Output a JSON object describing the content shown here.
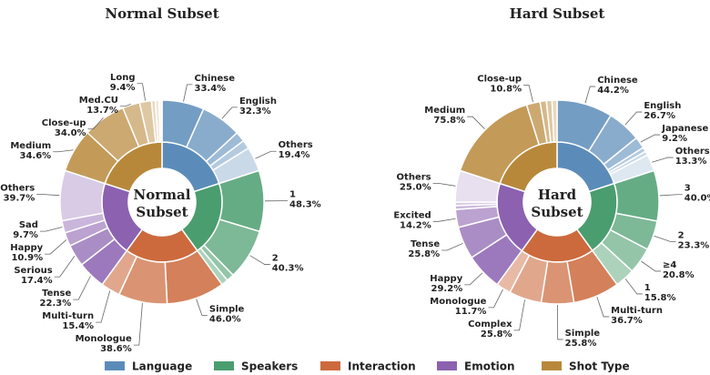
{
  "chart_data": [
    {
      "type": "sunburst",
      "title": "Normal Subset",
      "series": [
        {
          "name": "Language",
          "color": "#5b8cb9",
          "categories": [
            "Chinese",
            "English",
            null,
            null,
            "Others"
          ],
          "values": [
            33.4,
            32.3,
            8.0,
            6.9,
            19.4
          ],
          "value_labels": [
            "33.4%",
            "32.3%",
            null,
            null,
            "19.4%"
          ]
        },
        {
          "name": "Speakers",
          "color": "#4a9d6e",
          "categories": [
            "1",
            "2",
            null,
            null
          ],
          "values": [
            48.3,
            40.3,
            6.0,
            5.4
          ],
          "value_labels": [
            "48.3%",
            "40.3%",
            null,
            null
          ]
        },
        {
          "name": "Interaction",
          "color": "#cc6a3d",
          "categories": [
            "Simple",
            "Monologue",
            "Multi-turn"
          ],
          "values": [
            46.0,
            38.6,
            15.4
          ],
          "value_labels": [
            "46.0%",
            "38.6%",
            "15.4%"
          ]
        },
        {
          "name": "Emotion",
          "color": "#8b61b0",
          "categories": [
            "Tense",
            "Serious",
            "Happy",
            "Sad",
            "Others"
          ],
          "values": [
            22.3,
            17.4,
            10.9,
            9.7,
            39.7
          ],
          "value_labels": [
            "22.3%",
            "17.4%",
            "10.9%",
            "9.7%",
            "39.7%"
          ]
        },
        {
          "name": "Shot Type",
          "color": "#b8883a",
          "categories": [
            "Medium",
            "Close-up",
            "Med.CU",
            "Long",
            null,
            null,
            null
          ],
          "values": [
            34.6,
            34.0,
            13.7,
            9.4,
            3.0,
            3.0,
            2.3
          ],
          "value_labels": [
            "34.6%",
            "34.0%",
            "13.7%",
            "9.4%",
            null,
            null,
            null
          ]
        }
      ]
    },
    {
      "type": "sunburst",
      "title": "Hard Subset",
      "series": [
        {
          "name": "Language",
          "color": "#5b8cb9",
          "categories": [
            "Chinese",
            "English",
            "Japanese",
            null,
            null,
            "Others"
          ],
          "values": [
            44.2,
            26.7,
            9.2,
            3.5,
            3.1,
            13.3
          ],
          "value_labels": [
            "44.2%",
            "26.7%",
            "9.2%",
            null,
            null,
            "13.3%"
          ]
        },
        {
          "name": "Speakers",
          "color": "#4a9d6e",
          "categories": [
            "3",
            "2",
            "≥4",
            "1"
          ],
          "values": [
            40.0,
            23.3,
            20.8,
            15.8
          ],
          "value_labels": [
            "40.0%",
            "23.3%",
            "20.8%",
            "15.8%"
          ]
        },
        {
          "name": "Interaction",
          "color": "#cc6a3d",
          "categories": [
            "Multi-turn",
            "Simple",
            "Complex",
            "Monologue"
          ],
          "values": [
            36.7,
            25.8,
            25.8,
            11.7
          ],
          "value_labels": [
            "36.7%",
            "25.8%",
            "25.8%",
            "11.7%"
          ]
        },
        {
          "name": "Emotion",
          "color": "#8b61b0",
          "categories": [
            "Happy",
            "Tense",
            "Excited",
            null,
            null,
            "Others"
          ],
          "values": [
            29.2,
            25.8,
            14.2,
            3.0,
            2.8,
            25.0
          ],
          "value_labels": [
            "29.2%",
            "25.8%",
            "14.2%",
            null,
            null,
            "25.0%"
          ]
        },
        {
          "name": "Shot Type",
          "color": "#b8883a",
          "categories": [
            "Medium",
            "Close-up",
            null,
            null,
            null
          ],
          "values": [
            75.8,
            10.8,
            5.0,
            4.4,
            4.0
          ],
          "value_labels": [
            "75.8%",
            "10.8%",
            null,
            null,
            null
          ]
        }
      ]
    }
  ]
}
